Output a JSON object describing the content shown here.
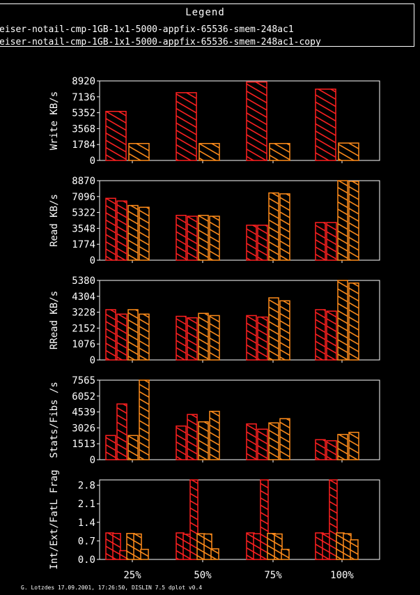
{
  "legend": {
    "title": "Legend",
    "entries": [
      "eiser-notail-cmp-1GB-1x1-5000-appfix-65536-smem-248ac1",
      "eiser-notail-cmp-1GB-1x1-5000-appfix-65536-smem-248ac1-copy"
    ]
  },
  "footer": "G. Lotzdes 17.09.2001, 17:26:50, DISLIN 7.5 dplot v0.4",
  "colors": {
    "run1": "#ff2020",
    "run2": "#ff8c1a",
    "axis": "#ffffff",
    "background": "#000000"
  },
  "chart_data": {
    "type": "bar",
    "categories": [
      "25%",
      "50%",
      "75%",
      "100%"
    ],
    "panels": [
      {
        "ylabel": "Write KB/s",
        "ylim": [
          0,
          8920
        ],
        "yticks": [
          "0",
          "1784",
          "3568",
          "5352",
          "7136",
          "8920"
        ],
        "series": [
          {
            "values": [
              5500,
              7600,
              8800,
              8000
            ]
          },
          {
            "values": [
              1900,
              1900,
              1900,
              1950
            ]
          }
        ]
      },
      {
        "ylabel": "Read KB/s",
        "ylim": [
          0,
          8870
        ],
        "yticks": [
          "0",
          "1774",
          "3548",
          "5322",
          "7096",
          "8870"
        ],
        "series": [
          {
            "values": [
              6900,
              5000,
              3900,
              4200
            ]
          },
          {
            "values": [
              6600,
              4900,
              3900,
              4200
            ]
          },
          {
            "values": [
              6100,
              5000,
              7500,
              8900
            ]
          },
          {
            "values": [
              5900,
              4900,
              7400,
              8800
            ]
          }
        ]
      },
      {
        "ylabel": "RRead KB/s",
        "ylim": [
          0,
          5380
        ],
        "yticks": [
          "0",
          "1076",
          "2152",
          "3228",
          "4304",
          "5380"
        ],
        "series": [
          {
            "values": [
              3400,
              2950,
              3000,
              3400
            ]
          },
          {
            "values": [
              3100,
              2850,
              2900,
              3300
            ]
          },
          {
            "values": [
              3400,
              3150,
              4200,
              5450
            ]
          },
          {
            "values": [
              3100,
              3000,
              4000,
              5200
            ]
          }
        ]
      },
      {
        "ylabel": "Stats/Fibs /s",
        "ylim": [
          0,
          7565
        ],
        "yticks": [
          "0",
          "1513",
          "3026",
          "4539",
          "6052",
          "7565"
        ],
        "series": [
          {
            "values": [
              2300,
              3200,
              3400,
              1900
            ]
          },
          {
            "values": [
              5300,
              4300,
              2900,
              1800
            ]
          },
          {
            "values": [
              2300,
              3600,
              3500,
              2400
            ]
          },
          {
            "values": [
              7600,
              4600,
              3900,
              2600
            ]
          }
        ]
      },
      {
        "ylabel": "Int/Ext/FatL Frag",
        "ylim": [
          0,
          3.0
        ],
        "yticks": [
          "0.0",
          "0.7",
          "1.4",
          "2.1",
          "2.8"
        ],
        "series": [
          {
            "values": [
              1.0,
              1.0,
              1.0,
              1.0
            ]
          },
          {
            "values": [
              0.98,
              0.95,
              0.97,
              0.97
            ]
          },
          {
            "values": [
              0.33,
              3.0,
              3.0,
              3.0
            ]
          },
          {
            "values": [
              0.98,
              0.97,
              0.98,
              1.0
            ]
          },
          {
            "values": [
              0.96,
              0.96,
              0.96,
              0.97
            ]
          },
          {
            "values": [
              0.38,
              0.4,
              0.38,
              0.74
            ]
          }
        ]
      }
    ]
  }
}
